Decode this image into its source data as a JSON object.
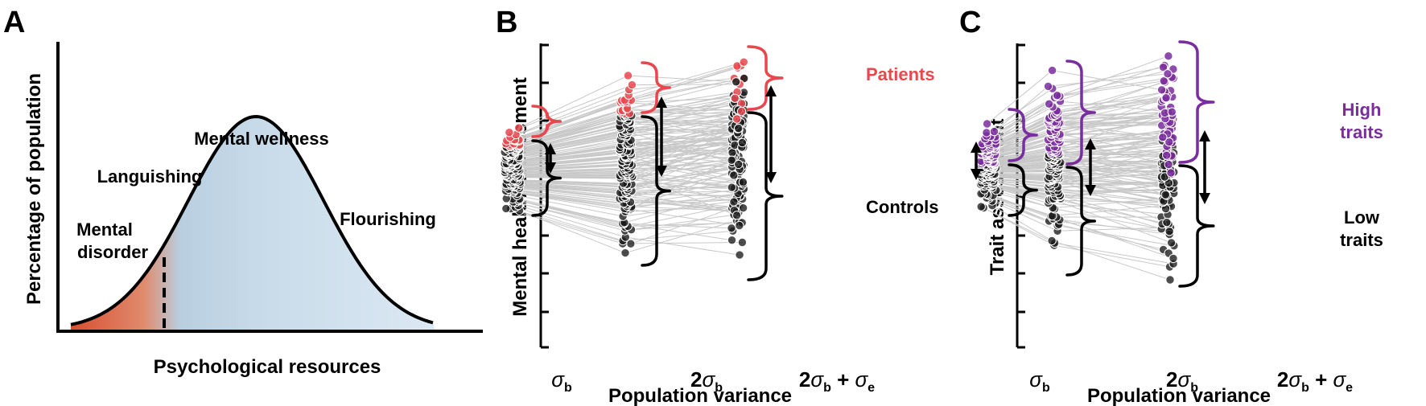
{
  "colors": {
    "disorder": "#d9573a",
    "wellness": "#c7dbea",
    "patients": "#e8484d",
    "controls": "#1a1a1a",
    "high_traits": "#7a2e9e",
    "connector": "#c8c8c8"
  },
  "panel_a": {
    "letter": "A",
    "ylabel": "Percentage of population",
    "xlabel": "Psychological resources",
    "labels": {
      "mental_wellness": "Mental wellness",
      "languishing": "Languishing",
      "mental": "Mental",
      "disorder": "disorder",
      "flourishing": "Flourishing"
    }
  },
  "panel_b": {
    "letter": "B",
    "ylabel": "Mental health assessment",
    "xlabel": "Population variance",
    "ticks": [
      "σb",
      "2σb",
      "2σb + σe"
    ],
    "group_high": "Patients",
    "group_low": "Controls"
  },
  "panel_c": {
    "letter": "C",
    "ylabel": "Trait assessment",
    "xlabel": "Population variance",
    "ticks": [
      "σb",
      "2σb",
      "2σb + σe"
    ],
    "group_high_1": "High",
    "group_high_2": "traits",
    "group_low_1": "Low",
    "group_low_2": "traits"
  }
}
